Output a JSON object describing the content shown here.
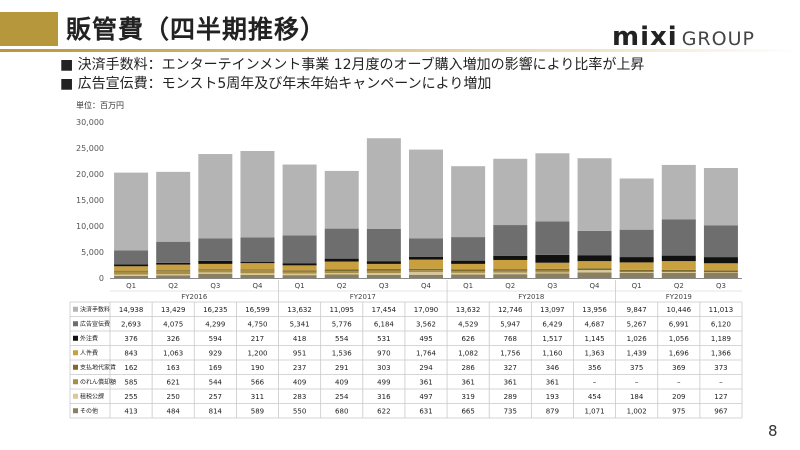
{
  "slide": {
    "title": "販管費（四半期推移）",
    "logo_mixi": "mixi",
    "logo_group": "GROUP",
    "bullets": [
      "■ 決済手数料：エンターテインメント事業 12月度のオーブ購入増加の影響により比率が上昇",
      "■ 広告宣伝費：モンスト5周年及び年末年始キャンペーンにより増加"
    ],
    "unit": "単位：百万円",
    "page_number": "8"
  },
  "colors": {
    "accent": "#b7973b"
  },
  "chart_data": {
    "type": "bar",
    "stacked": true,
    "ylim": [
      0,
      30000
    ],
    "yticks": [
      0,
      5000,
      10000,
      15000,
      20000,
      25000,
      30000
    ],
    "ytick_labels": [
      "0",
      "5,000",
      "10,000",
      "15,000",
      "20,000",
      "25,000",
      "30,000"
    ],
    "grid": false,
    "categories": [
      "Q1",
      "Q2",
      "Q3",
      "Q4",
      "Q1",
      "Q2",
      "Q3",
      "Q4",
      "Q1",
      "Q2",
      "Q3",
      "Q4",
      "Q1",
      "Q2",
      "Q3"
    ],
    "fiscal_years": [
      {
        "label": "FY2016",
        "span": 4
      },
      {
        "label": "FY2017",
        "span": 4
      },
      {
        "label": "FY2018",
        "span": 4
      },
      {
        "label": "FY2019",
        "span": 3
      }
    ],
    "series": [
      {
        "name": "その他",
        "color": "#8a8060",
        "values": [
          413,
          484,
          814,
          589,
          550,
          680,
          622,
          631,
          665,
          735,
          879,
          1071,
          1002,
          975,
          967
        ]
      },
      {
        "name": "租税公課",
        "color": "#d9c89a",
        "values": [
          255,
          250,
          257,
          311,
          283,
          254,
          316,
          497,
          319,
          289,
          193,
          454,
          184,
          209,
          127
        ]
      },
      {
        "name": "のれん償却額",
        "color": "#a88e45",
        "values": [
          585,
          621,
          544,
          566,
          409,
          409,
          499,
          361,
          361,
          361,
          361,
          null,
          null,
          null,
          null
        ]
      },
      {
        "name": "支払地代家賃",
        "color": "#7d6a2f",
        "values": [
          162,
          163,
          169,
          190,
          237,
          291,
          303,
          294,
          286,
          327,
          346,
          356,
          375,
          369,
          373
        ]
      },
      {
        "name": "人件費",
        "color": "#c9a040",
        "values": [
          843,
          1063,
          929,
          1200,
          951,
          1536,
          970,
          1764,
          1082,
          1756,
          1160,
          1363,
          1439,
          1696,
          1366
        ]
      },
      {
        "name": "外注費",
        "color": "#111111",
        "values": [
          376,
          326,
          594,
          217,
          418,
          554,
          531,
          495,
          626,
          768,
          1517,
          1145,
          1026,
          1056,
          1189
        ]
      },
      {
        "name": "広告宣伝費",
        "color": "#6e6e6e",
        "values": [
          2693,
          4075,
          4299,
          4750,
          5341,
          5776,
          6184,
          3562,
          4529,
          5947,
          6429,
          4687,
          5267,
          6991,
          6120
        ]
      },
      {
        "name": "決済手数料",
        "color": "#b4b4b4",
        "values": [
          14938,
          13429,
          16235,
          16599,
          13632,
          11095,
          17454,
          17090,
          13632,
          12746,
          13097,
          13956,
          9847,
          10446,
          11013
        ]
      }
    ],
    "table": {
      "row_order": [
        "決済手数料",
        "広告宣伝費",
        "外注費",
        "人件費",
        "支払地代家賃",
        "のれん償却額",
        "租税公課",
        "その他"
      ],
      "rows": [
        {
          "label": "決済手数料",
          "values": [
            "14,938",
            "13,429",
            "16,235",
            "16,599",
            "13,632",
            "11,095",
            "17,454",
            "17,090",
            "13,632",
            "12,746",
            "13,097",
            "13,956",
            "9,847",
            "10,446",
            "11,013"
          ]
        },
        {
          "label": "広告宣伝費",
          "values": [
            "2,693",
            "4,075",
            "4,299",
            "4,750",
            "5,341",
            "5,776",
            "6,184",
            "3,562",
            "4,529",
            "5,947",
            "6,429",
            "4,687",
            "5,267",
            "6,991",
            "6,120"
          ]
        },
        {
          "label": "外注費",
          "values": [
            "376",
            "326",
            "594",
            "217",
            "418",
            "554",
            "531",
            "495",
            "626",
            "768",
            "1,517",
            "1,145",
            "1,026",
            "1,056",
            "1,189"
          ]
        },
        {
          "label": "人件費",
          "values": [
            "843",
            "1,063",
            "929",
            "1,200",
            "951",
            "1,536",
            "970",
            "1,764",
            "1,082",
            "1,756",
            "1,160",
            "1,363",
            "1,439",
            "1,696",
            "1,366"
          ]
        },
        {
          "label": "支払地代家賃",
          "values": [
            "162",
            "163",
            "169",
            "190",
            "237",
            "291",
            "303",
            "294",
            "286",
            "327",
            "346",
            "356",
            "375",
            "369",
            "373"
          ]
        },
        {
          "label": "のれん償却額",
          "values": [
            "585",
            "621",
            "544",
            "566",
            "409",
            "409",
            "499",
            "361",
            "361",
            "361",
            "361",
            "–",
            "–",
            "–",
            "–"
          ]
        },
        {
          "label": "租税公課",
          "values": [
            "255",
            "250",
            "257",
            "311",
            "283",
            "254",
            "316",
            "497",
            "319",
            "289",
            "193",
            "454",
            "184",
            "209",
            "127"
          ]
        },
        {
          "label": "その他",
          "values": [
            "413",
            "484",
            "814",
            "589",
            "550",
            "680",
            "622",
            "631",
            "665",
            "735",
            "879",
            "1,071",
            "1,002",
            "975",
            "967"
          ]
        }
      ]
    }
  }
}
